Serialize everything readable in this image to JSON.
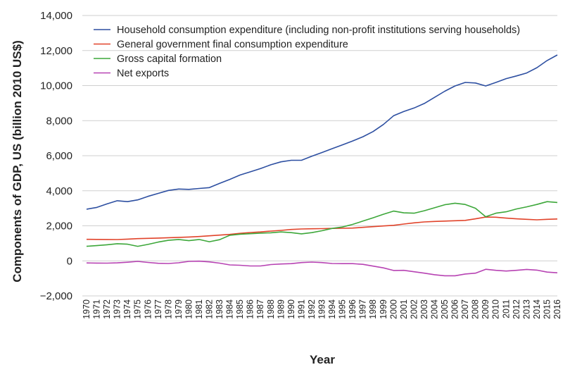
{
  "chart_data": {
    "type": "line",
    "xlabel": "Year",
    "ylabel": "Components of GDP, US (billion 2010 US$)",
    "ylim": [
      -2000,
      14000
    ],
    "yticks": [
      14000,
      12000,
      10000,
      8000,
      6000,
      4000,
      2000,
      0,
      -2000
    ],
    "ytick_labels": [
      "14,000",
      "12,000",
      "10,000",
      "8,000",
      "6,000",
      "4,000",
      "2,000",
      "0",
      "−2,000"
    ],
    "x": [
      1970,
      1971,
      1972,
      1973,
      1974,
      1975,
      1976,
      1977,
      1978,
      1979,
      1980,
      1981,
      1982,
      1983,
      1984,
      1985,
      1986,
      1987,
      1988,
      1989,
      1990,
      1991,
      1992,
      1993,
      1994,
      1995,
      1996,
      1997,
      1998,
      1999,
      2000,
      2001,
      2002,
      2003,
      2004,
      2005,
      2006,
      2007,
      2008,
      2009,
      2010,
      2011,
      2012,
      2013,
      2014,
      2015,
      2016
    ],
    "legend_position": "top-left",
    "grid": "horizontal",
    "series": [
      {
        "name": "Household consumption expenditure (including non-profit institutions serving households)",
        "color": "#2d4fa1",
        "values": [
          2950,
          3050,
          3250,
          3430,
          3380,
          3480,
          3680,
          3850,
          4020,
          4100,
          4080,
          4130,
          4180,
          4420,
          4650,
          4900,
          5080,
          5270,
          5480,
          5650,
          5740,
          5740,
          5970,
          6180,
          6400,
          6620,
          6840,
          7080,
          7380,
          7780,
          8280,
          8520,
          8720,
          8980,
          9330,
          9680,
          9980,
          10180,
          10150,
          9980,
          10180,
          10400,
          10550,
          10720,
          11020,
          11430,
          11750
        ]
      },
      {
        "name": "General government final consumption expenditure",
        "color": "#e1432a",
        "values": [
          1230,
          1225,
          1220,
          1215,
          1240,
          1270,
          1285,
          1300,
          1320,
          1340,
          1360,
          1390,
          1430,
          1470,
          1510,
          1570,
          1620,
          1650,
          1700,
          1740,
          1790,
          1820,
          1830,
          1840,
          1850,
          1860,
          1870,
          1910,
          1950,
          1990,
          2030,
          2100,
          2170,
          2220,
          2250,
          2270,
          2290,
          2310,
          2400,
          2500,
          2490,
          2440,
          2400,
          2370,
          2340,
          2370,
          2390
        ]
      },
      {
        "name": "Gross capital formation",
        "color": "#3da73a",
        "values": [
          830,
          870,
          920,
          980,
          950,
          830,
          940,
          1070,
          1170,
          1220,
          1150,
          1220,
          1090,
          1210,
          1460,
          1520,
          1550,
          1580,
          1600,
          1650,
          1610,
          1540,
          1610,
          1720,
          1850,
          1930,
          2080,
          2270,
          2460,
          2660,
          2840,
          2740,
          2720,
          2860,
          3030,
          3200,
          3290,
          3220,
          3000,
          2520,
          2720,
          2800,
          2960,
          3080,
          3220,
          3380,
          3330
        ]
      },
      {
        "name": "Net exports",
        "color": "#b743b3",
        "values": [
          -120,
          -125,
          -130,
          -115,
          -80,
          -30,
          -90,
          -140,
          -150,
          -110,
          -30,
          -20,
          -60,
          -130,
          -230,
          -250,
          -290,
          -290,
          -210,
          -180,
          -160,
          -100,
          -70,
          -100,
          -150,
          -160,
          -160,
          -200,
          -300,
          -400,
          -550,
          -540,
          -620,
          -700,
          -790,
          -850,
          -850,
          -750,
          -700,
          -480,
          -540,
          -580,
          -540,
          -490,
          -530,
          -640,
          -680
        ]
      }
    ]
  }
}
